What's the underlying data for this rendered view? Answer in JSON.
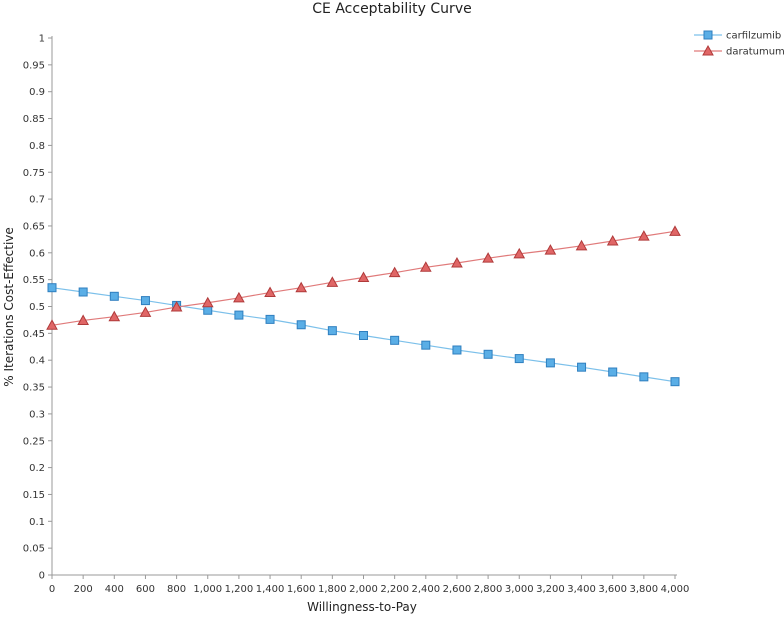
{
  "chart_data": {
    "type": "line",
    "title": "CE Acceptability Curve",
    "xlabel": "Willingness-to-Pay",
    "ylabel": "% Iterations Cost-Effective",
    "xlim": [
      0,
      4000
    ],
    "ylim": [
      0,
      1
    ],
    "x": [
      0,
      200,
      400,
      600,
      800,
      1000,
      1200,
      1400,
      1600,
      1800,
      2000,
      2200,
      2400,
      2600,
      2800,
      3000,
      3200,
      3400,
      3600,
      3800,
      4000
    ],
    "x_tick_labels": [
      "0",
      "200",
      "400",
      "600",
      "800",
      "1,000",
      "1,200",
      "1,400",
      "1,600",
      "1,800",
      "2,000",
      "2,200",
      "2,400",
      "2,600",
      "2,800",
      "3,000",
      "3,200",
      "3,400",
      "3,600",
      "3,800",
      "4,000"
    ],
    "y_ticks": [
      0,
      0.05,
      0.1,
      0.15,
      0.2,
      0.25,
      0.3,
      0.35,
      0.4,
      0.45,
      0.5,
      0.55,
      0.6,
      0.65,
      0.7,
      0.75,
      0.8,
      0.85,
      0.9,
      0.95,
      1
    ],
    "y_tick_labels": [
      "0",
      "0.05",
      "0.1",
      "0.15",
      "0.2",
      "0.25",
      "0.3",
      "0.35",
      "0.4",
      "0.45",
      "0.5",
      "0.55",
      "0.6",
      "0.65",
      "0.7",
      "0.75",
      "0.8",
      "0.85",
      "0.9",
      "0.95",
      "1"
    ],
    "grid": false,
    "legend_position": "top-right",
    "series": [
      {
        "name": "carfilzumib",
        "marker": "square",
        "color": "#5aaee6",
        "line_color": "#7cc0ea",
        "edge_color": "#2f7fbf",
        "values": [
          0.535,
          0.527,
          0.519,
          0.511,
          0.502,
          0.493,
          0.484,
          0.476,
          0.466,
          0.455,
          0.446,
          0.437,
          0.428,
          0.419,
          0.411,
          0.403,
          0.395,
          0.387,
          0.378,
          0.369,
          0.36
        ]
      },
      {
        "name": "daratumumab",
        "marker": "triangle",
        "color": "#e06666",
        "line_color": "#e07a7a",
        "edge_color": "#b03a3a",
        "values": [
          0.465,
          0.474,
          0.481,
          0.489,
          0.499,
          0.507,
          0.516,
          0.526,
          0.535,
          0.545,
          0.554,
          0.563,
          0.573,
          0.581,
          0.59,
          0.598,
          0.605,
          0.613,
          0.622,
          0.631,
          0.64
        ]
      }
    ]
  },
  "colors": {
    "axis": "#999999",
    "text": "#333333"
  }
}
